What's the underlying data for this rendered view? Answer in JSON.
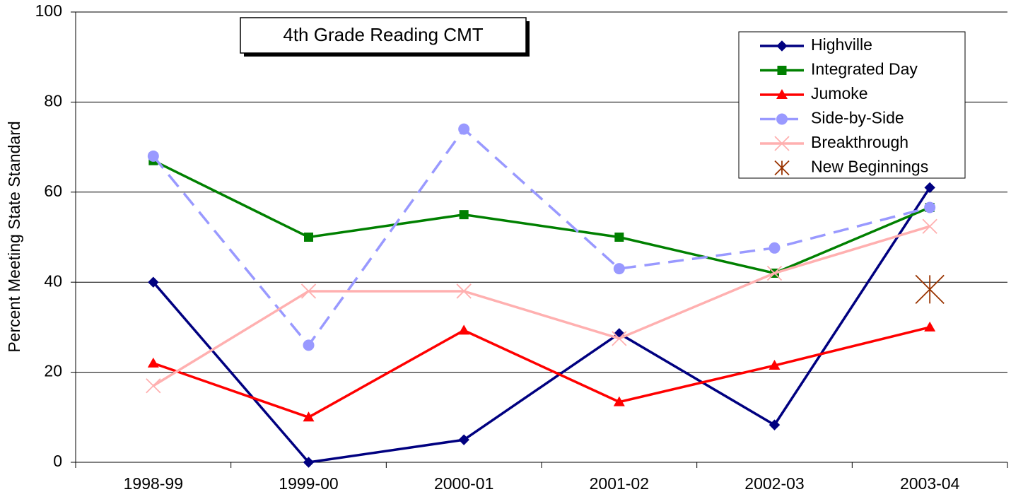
{
  "chart_data": {
    "type": "line",
    "title": "4th Grade Reading CMT",
    "y_label": "Percent Meeting State Standard",
    "categories": [
      "1998-99",
      "1999-00",
      "2000-01",
      "2001-02",
      "2002-03",
      "2003-04"
    ],
    "ylim": [
      0,
      100
    ],
    "yticks": [
      0,
      20,
      40,
      60,
      80,
      100
    ],
    "grid": true,
    "legend": "upper right",
    "series": [
      {
        "name": "Highville",
        "color": "#000080",
        "marker": "diamond",
        "values": [
          40,
          0,
          5,
          28.6,
          8.3,
          61
        ]
      },
      {
        "name": "Integrated Day",
        "color": "#008000",
        "marker": "square",
        "values": [
          67,
          50,
          55,
          50,
          42,
          56.6
        ]
      },
      {
        "name": "Jumoke",
        "color": "#ff0000",
        "marker": "triangle",
        "values": [
          22,
          10,
          29.3,
          13.4,
          21.5,
          30
        ]
      },
      {
        "name": "Side-by-Side",
        "color": "#9999ff",
        "marker": "circle",
        "dashed": true,
        "values": [
          68,
          26,
          74,
          43,
          47.6,
          56.6
        ]
      },
      {
        "name": "Breakthrough",
        "color": "#ffb0b0",
        "marker": "x",
        "values": [
          17,
          38,
          38,
          27.5,
          42,
          52.4
        ]
      },
      {
        "name": "New Beginnings",
        "color": "#993300",
        "marker": "asterisk",
        "line": false,
        "values": [
          null,
          null,
          null,
          null,
          null,
          38.4
        ]
      }
    ]
  }
}
